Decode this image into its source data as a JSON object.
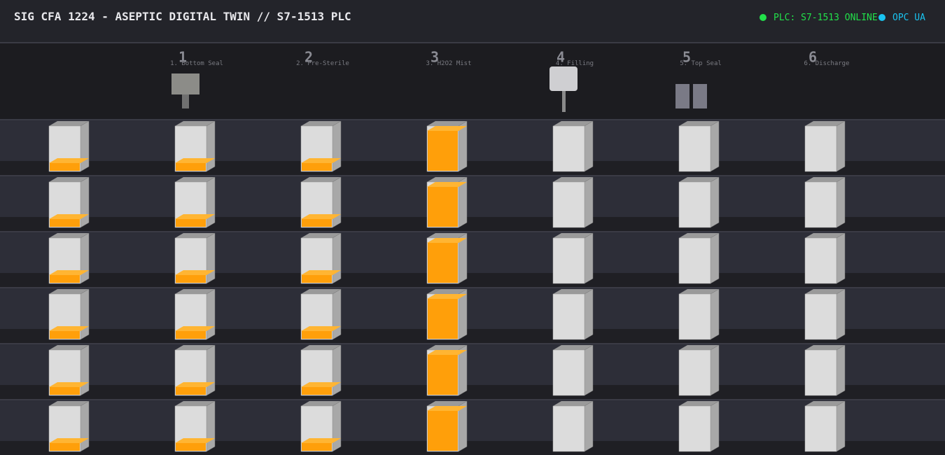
{
  "header": {
    "title": "SIG CFA 1224 - ASEPTIC DIGITAL TWIN // S7-1513 PLC",
    "status": [
      {
        "label": "PLC: S7-1513 ONLINE",
        "color": "#22e04a"
      },
      {
        "label": "OPC UA",
        "color": "#19c3f0"
      }
    ]
  },
  "stations": [
    {
      "number": "1",
      "label": "1. Bottom Seal"
    },
    {
      "number": "2",
      "label": "2. Pre-Sterile"
    },
    {
      "number": "3",
      "label": "3. H2O2 Mist"
    },
    {
      "number": "4",
      "label": "4. Filling"
    },
    {
      "number": "5",
      "label": "5. Top Seal"
    },
    {
      "number": "6",
      "label": "6. Discharge"
    }
  ]
}
